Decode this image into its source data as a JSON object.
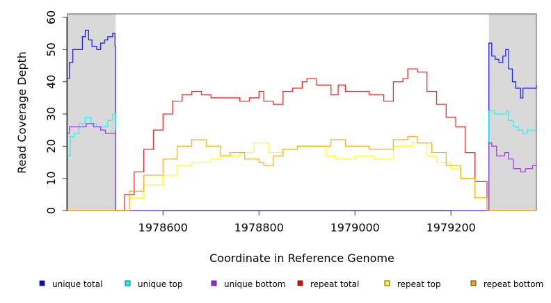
{
  "chart_data": {
    "type": "line",
    "title": "",
    "xlabel": "Coordinate in Reference Genome",
    "ylabel": "Read Coverage Depth",
    "xlim": [
      1978401,
      1979378
    ],
    "ylim": [
      0,
      61
    ],
    "xticks": [
      1978600,
      1978800,
      1979000,
      1979200
    ],
    "yticks": [
      0,
      10,
      20,
      30,
      40,
      50,
      60
    ],
    "shaded_regions": [
      [
        1978401,
        1978501
      ],
      [
        1979279,
        1979378
      ]
    ],
    "legend_position": "bottom",
    "series": [
      {
        "name": "unique total",
        "color": "#0000ff",
        "points": [
          [
            1978401,
            41
          ],
          [
            1978405,
            46
          ],
          [
            1978412,
            50
          ],
          [
            1978425,
            50
          ],
          [
            1978432,
            54
          ],
          [
            1978438,
            56
          ],
          [
            1978445,
            53
          ],
          [
            1978452,
            51
          ],
          [
            1978462,
            50
          ],
          [
            1978470,
            52
          ],
          [
            1978478,
            53
          ],
          [
            1978485,
            54
          ],
          [
            1978495,
            55
          ],
          [
            1978500,
            51
          ],
          [
            1978501,
            0
          ],
          [
            1979279,
            0
          ],
          [
            1979279,
            52
          ],
          [
            1979285,
            48
          ],
          [
            1979292,
            47
          ],
          [
            1979300,
            46
          ],
          [
            1979308,
            48
          ],
          [
            1979314,
            50
          ],
          [
            1979320,
            44
          ],
          [
            1979328,
            40
          ],
          [
            1979335,
            38
          ],
          [
            1979345,
            35
          ],
          [
            1979350,
            38
          ],
          [
            1979365,
            38
          ],
          [
            1979378,
            39
          ]
        ]
      },
      {
        "name": "unique top",
        "color": "#00ffff",
        "points": [
          [
            1978401,
            17
          ],
          [
            1978407,
            23
          ],
          [
            1978415,
            24
          ],
          [
            1978425,
            27
          ],
          [
            1978438,
            29
          ],
          [
            1978450,
            27
          ],
          [
            1978462,
            26
          ],
          [
            1978475,
            26
          ],
          [
            1978485,
            28
          ],
          [
            1978495,
            30
          ],
          [
            1978501,
            30
          ],
          [
            1978501,
            0
          ],
          [
            1979279,
            0
          ],
          [
            1979279,
            31
          ],
          [
            1979290,
            30
          ],
          [
            1979305,
            30
          ],
          [
            1979315,
            31
          ],
          [
            1979320,
            28
          ],
          [
            1979330,
            26
          ],
          [
            1979340,
            25
          ],
          [
            1979350,
            24
          ],
          [
            1979360,
            25
          ],
          [
            1979378,
            25
          ]
        ]
      },
      {
        "name": "unique bottom",
        "color": "#a020f0",
        "points": [
          [
            1978401,
            24
          ],
          [
            1978405,
            26
          ],
          [
            1978420,
            26
          ],
          [
            1978440,
            27
          ],
          [
            1978455,
            26
          ],
          [
            1978470,
            25
          ],
          [
            1978480,
            24
          ],
          [
            1978495,
            24
          ],
          [
            1978501,
            25
          ],
          [
            1978501,
            0
          ],
          [
            1979279,
            0
          ],
          [
            1979279,
            21
          ],
          [
            1979285,
            20
          ],
          [
            1979295,
            17
          ],
          [
            1979305,
            17
          ],
          [
            1979312,
            18
          ],
          [
            1979320,
            16
          ],
          [
            1979330,
            13
          ],
          [
            1979345,
            12
          ],
          [
            1979355,
            13
          ],
          [
            1979370,
            14
          ],
          [
            1979378,
            14
          ]
        ]
      },
      {
        "name": "repeat total",
        "color": "#ff0000",
        "points": [
          [
            1978401,
            0
          ],
          [
            1978505,
            0
          ],
          [
            1978520,
            5
          ],
          [
            1978540,
            12
          ],
          [
            1978560,
            19
          ],
          [
            1978580,
            25
          ],
          [
            1978600,
            30
          ],
          [
            1978620,
            34
          ],
          [
            1978640,
            36
          ],
          [
            1978660,
            37
          ],
          [
            1978680,
            36
          ],
          [
            1978700,
            35
          ],
          [
            1978730,
            35
          ],
          [
            1978760,
            34
          ],
          [
            1978780,
            35
          ],
          [
            1978800,
            37
          ],
          [
            1978810,
            34
          ],
          [
            1978830,
            33
          ],
          [
            1978850,
            37
          ],
          [
            1978870,
            38
          ],
          [
            1978890,
            40
          ],
          [
            1978900,
            41
          ],
          [
            1978920,
            39
          ],
          [
            1978950,
            36
          ],
          [
            1978965,
            39
          ],
          [
            1978980,
            37
          ],
          [
            1979000,
            37
          ],
          [
            1979030,
            36
          ],
          [
            1979060,
            34
          ],
          [
            1979080,
            40
          ],
          [
            1979100,
            41
          ],
          [
            1979110,
            44
          ],
          [
            1979130,
            43
          ],
          [
            1979150,
            37
          ],
          [
            1979170,
            33
          ],
          [
            1979190,
            29
          ],
          [
            1979210,
            26
          ],
          [
            1979230,
            18
          ],
          [
            1979250,
            9
          ],
          [
            1979275,
            0
          ],
          [
            1979378,
            0
          ]
        ]
      },
      {
        "name": "unique top",
        "legend": false,
        "color": "#ffff00",
        "points": []
      },
      {
        "name": "repeat top",
        "color": "#ffff00",
        "points": [
          [
            1978401,
            0
          ],
          [
            1978505,
            0
          ],
          [
            1978530,
            4
          ],
          [
            1978560,
            8
          ],
          [
            1978600,
            11
          ],
          [
            1978630,
            14
          ],
          [
            1978660,
            15
          ],
          [
            1978700,
            16
          ],
          [
            1978720,
            17
          ],
          [
            1978760,
            18
          ],
          [
            1978790,
            21
          ],
          [
            1978820,
            18
          ],
          [
            1978850,
            19
          ],
          [
            1978880,
            20
          ],
          [
            1978920,
            20
          ],
          [
            1978940,
            17
          ],
          [
            1978960,
            16
          ],
          [
            1979000,
            17
          ],
          [
            1979040,
            16
          ],
          [
            1979060,
            16
          ],
          [
            1979080,
            20
          ],
          [
            1979120,
            21
          ],
          [
            1979150,
            17
          ],
          [
            1979170,
            15
          ],
          [
            1979200,
            13
          ],
          [
            1979220,
            10
          ],
          [
            1979250,
            4
          ],
          [
            1979275,
            0
          ],
          [
            1979378,
            0
          ]
        ]
      },
      {
        "name": "repeat bottom",
        "color": "#ffa500",
        "points": [
          [
            1978401,
            0
          ],
          [
            1978505,
            0
          ],
          [
            1978530,
            6
          ],
          [
            1978560,
            11
          ],
          [
            1978600,
            16
          ],
          [
            1978630,
            20
          ],
          [
            1978660,
            22
          ],
          [
            1978690,
            20
          ],
          [
            1978720,
            17
          ],
          [
            1978740,
            18
          ],
          [
            1978770,
            16
          ],
          [
            1978800,
            15
          ],
          [
            1978810,
            14
          ],
          [
            1978830,
            17
          ],
          [
            1978850,
            19
          ],
          [
            1978880,
            20
          ],
          [
            1978920,
            20
          ],
          [
            1978950,
            22
          ],
          [
            1978980,
            20
          ],
          [
            1979030,
            19
          ],
          [
            1979060,
            19
          ],
          [
            1979080,
            22
          ],
          [
            1979110,
            23
          ],
          [
            1979130,
            21
          ],
          [
            1979160,
            18
          ],
          [
            1979190,
            14
          ],
          [
            1979220,
            10
          ],
          [
            1979250,
            4
          ],
          [
            1979275,
            0
          ],
          [
            1979378,
            0
          ]
        ]
      }
    ]
  }
}
